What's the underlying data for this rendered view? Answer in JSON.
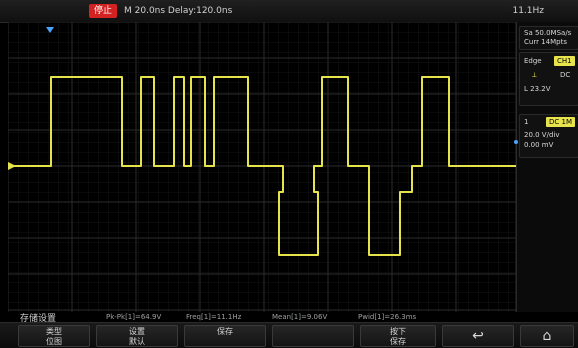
{
  "topbar": {
    "run_state": "停止",
    "timebase": "M 20.0ns  Delay:120.0ns",
    "frequency": "11.1Hz"
  },
  "right_panel": {
    "block1": {
      "line1": "Sa 50.0MSa/s",
      "line2": "Curr 14Mpts"
    },
    "block2": {
      "line1": "Edge",
      "ch": "CH1",
      "line2": "⟂",
      "line3": "DC",
      "line4": "L 23.2V"
    },
    "block3": {
      "badge": "1",
      "ch": "DC 1M",
      "line1": "20.0 V/div",
      "line2": "0.00 mV"
    }
  },
  "measurements": {
    "m1": "Pk-Pk[1]=64.9V",
    "m2": "Freq[1]=11.1Hz",
    "m3": "Mean[1]=9.06V",
    "m4": "Pwid[1]=26.3ms"
  },
  "softkeys": {
    "title": "存储设置",
    "k1": {
      "line1": "类型",
      "line2": "位图"
    },
    "k2": {
      "line1": "设置",
      "line2": "默认"
    },
    "k3": {
      "line1": "保存",
      "line2": ""
    },
    "k4": {
      "line1": "",
      "line2": ""
    },
    "k5": {
      "line1": "按下",
      "line2": "保存"
    },
    "k6": {
      "line1": "↩",
      "line2": ""
    },
    "k7": {
      "line1": "⌂",
      "line2": ""
    }
  },
  "colors": {
    "waveform": "#e6e34b",
    "grid": "#2b2b2b",
    "background": "#000000"
  }
}
